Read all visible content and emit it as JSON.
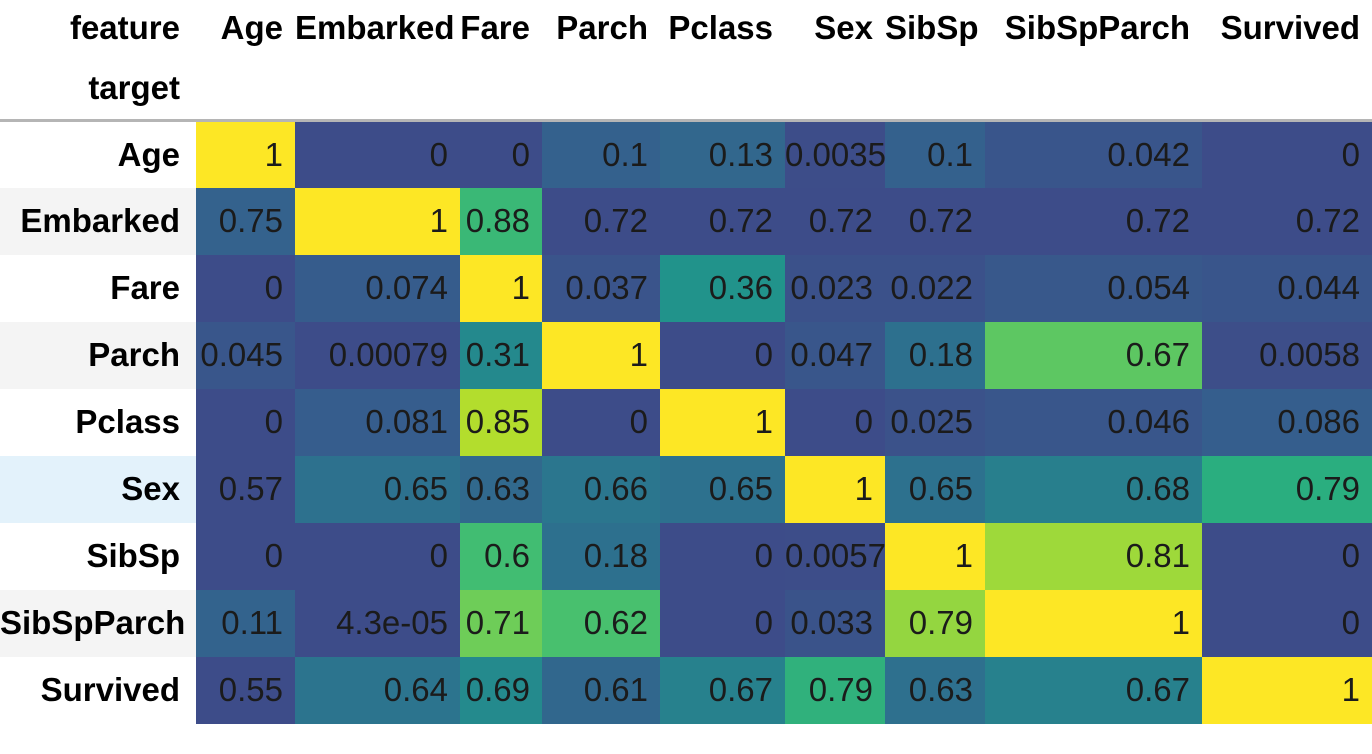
{
  "style": {
    "background": "#ffffff",
    "rule_color": "#b5b5b5",
    "stripe_bg": "#f4f4f4",
    "highlight_bg": "#e3f2fb",
    "header_text_color": "#000000",
    "cell_text_color": "#1b1b1b"
  },
  "chart_data": {
    "type": "heatmap",
    "title": "",
    "corner_label": "feature",
    "index_label": "target",
    "columns": [
      "Age",
      "Embarked",
      "Fare",
      "Parch",
      "Pclass",
      "Sex",
      "SibSp",
      "SibSpParch",
      "Survived"
    ],
    "highlighted_row": "Sex",
    "rows": [
      {
        "label": "Age",
        "display": [
          "1",
          "0",
          "0",
          "0.1",
          "0.13",
          "0.0035",
          "0.1",
          "0.042",
          "0"
        ],
        "values": [
          1,
          0,
          0,
          0.1,
          0.13,
          0.0035,
          0.1,
          0.042,
          0
        ]
      },
      {
        "label": "Embarked",
        "display": [
          "0.75",
          "1",
          "0.88",
          "0.72",
          "0.72",
          "0.72",
          "0.72",
          "0.72",
          "0.72"
        ],
        "values": [
          0.75,
          1,
          0.88,
          0.72,
          0.72,
          0.72,
          0.72,
          0.72,
          0.72
        ]
      },
      {
        "label": "Fare",
        "display": [
          "0",
          "0.074",
          "1",
          "0.037",
          "0.36",
          "0.023",
          "0.022",
          "0.054",
          "0.044"
        ],
        "values": [
          0,
          0.074,
          1,
          0.037,
          0.36,
          0.023,
          0.022,
          0.054,
          0.044
        ]
      },
      {
        "label": "Parch",
        "display": [
          "0.045",
          "0.00079",
          "0.31",
          "1",
          "0",
          "0.047",
          "0.18",
          "0.67",
          "0.0058"
        ],
        "values": [
          0.045,
          0.00079,
          0.31,
          1,
          0,
          0.047,
          0.18,
          0.67,
          0.0058
        ]
      },
      {
        "label": "Pclass",
        "display": [
          "0",
          "0.081",
          "0.85",
          "0",
          "1",
          "0",
          "0.025",
          "0.046",
          "0.086"
        ],
        "values": [
          0,
          0.081,
          0.85,
          0,
          1,
          0,
          0.025,
          0.046,
          0.086
        ]
      },
      {
        "label": "Sex",
        "display": [
          "0.57",
          "0.65",
          "0.63",
          "0.66",
          "0.65",
          "1",
          "0.65",
          "0.68",
          "0.79"
        ],
        "values": [
          0.57,
          0.65,
          0.63,
          0.66,
          0.65,
          1,
          0.65,
          0.68,
          0.79
        ]
      },
      {
        "label": "SibSp",
        "display": [
          "0",
          "0",
          "0.6",
          "0.18",
          "0",
          "0.0057",
          "1",
          "0.81",
          "0"
        ],
        "values": [
          0,
          0,
          0.6,
          0.18,
          0,
          0.0057,
          1,
          0.81,
          0
        ]
      },
      {
        "label": "SibSpParch",
        "display": [
          "0.11",
          "4.3e-05",
          "0.71",
          "0.62",
          "0",
          "0.033",
          "0.79",
          "1",
          "0"
        ],
        "values": [
          0.11,
          4.3e-05,
          0.71,
          0.62,
          0,
          0.033,
          0.79,
          1,
          0
        ]
      },
      {
        "label": "Survived",
        "display": [
          "0.55",
          "0.64",
          "0.69",
          "0.61",
          "0.67",
          "0.79",
          "0.63",
          "0.67",
          "1"
        ],
        "values": [
          0.55,
          0.64,
          0.69,
          0.61,
          0.67,
          0.79,
          0.63,
          0.67,
          1
        ]
      }
    ],
    "colormap": {
      "name": "viridis",
      "normalization": "per-row min-max",
      "low_trim": 0.3,
      "stops": [
        [
          68,
          1,
          84
        ],
        [
          72,
          36,
          117
        ],
        [
          65,
          68,
          135
        ],
        [
          53,
          95,
          141
        ],
        [
          42,
          120,
          142
        ],
        [
          33,
          145,
          140
        ],
        [
          34,
          168,
          132
        ],
        [
          68,
          191,
          112
        ],
        [
          122,
          209,
          81
        ],
        [
          189,
          223,
          38
        ],
        [
          253,
          231,
          37
        ]
      ]
    }
  }
}
